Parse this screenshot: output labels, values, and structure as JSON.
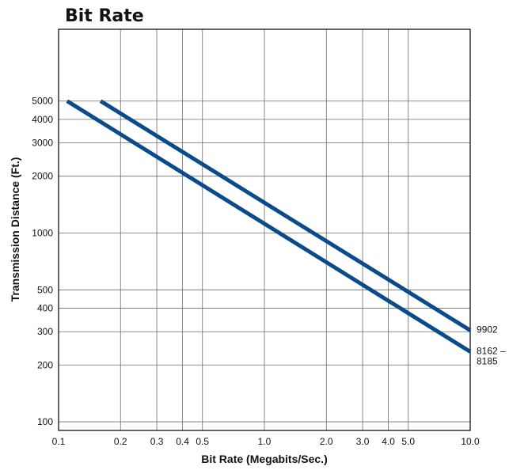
{
  "chart_data": {
    "type": "line",
    "title": "Bit Rate",
    "xlabel": "Bit Rate (Megabits/Sec.)",
    "ylabel": "Transmission Distance (Ft.)",
    "x_scale": "log",
    "y_scale": "log",
    "xlim": [
      0.1,
      10.0
    ],
    "ylim": [
      90,
      12000
    ],
    "grid": true,
    "x_ticks": [
      {
        "value": 0.1,
        "label": "0.1"
      },
      {
        "value": 0.2,
        "label": "0.2"
      },
      {
        "value": 0.3,
        "label": "0.3"
      },
      {
        "value": 0.4,
        "label": "0.4"
      },
      {
        "value": 0.5,
        "label": "0.5"
      },
      {
        "value": 1.0,
        "label": "1.0"
      },
      {
        "value": 2.0,
        "label": "2.0"
      },
      {
        "value": 3.0,
        "label": "3.0"
      },
      {
        "value": 4.0,
        "label": "4.0"
      },
      {
        "value": 5.0,
        "label": "5.0"
      },
      {
        "value": 10.0,
        "label": "10.0"
      }
    ],
    "y_ticks": [
      {
        "value": 100,
        "label": "100"
      },
      {
        "value": 200,
        "label": "200"
      },
      {
        "value": 300,
        "label": "300"
      },
      {
        "value": 400,
        "label": "400"
      },
      {
        "value": 500,
        "label": "500"
      },
      {
        "value": 1000,
        "label": "1000"
      },
      {
        "value": 2000,
        "label": "2000"
      },
      {
        "value": 3000,
        "label": "3000"
      },
      {
        "value": 4000,
        "label": "4000"
      },
      {
        "value": 5000,
        "label": "5000"
      }
    ],
    "series": [
      {
        "name": "9902",
        "label_lines": [
          "9902"
        ],
        "color": "#0b4a8b",
        "points": [
          [
            0.16,
            5000
          ],
          [
            10.0,
            305
          ]
        ]
      },
      {
        "name": "8162 – 8185",
        "label_lines": [
          "8162 –",
          "8185"
        ],
        "color": "#0b4a8b",
        "points": [
          [
            0.11,
            5000
          ],
          [
            10.0,
            235
          ]
        ]
      }
    ]
  }
}
